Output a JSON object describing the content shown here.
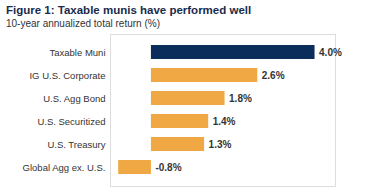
{
  "chart_data": {
    "type": "bar",
    "orientation": "horizontal",
    "title": "Figure 1: Taxable munis have performed well",
    "subtitle": "10-year annualized total return (%)",
    "categories": [
      "Taxable Muni",
      "IG U.S. Corporate",
      "U.S. Agg Bond",
      "U.S. Securitized",
      "U.S. Treasury",
      "Global Agg ex. U.S."
    ],
    "values": [
      4.0,
      2.6,
      1.8,
      1.4,
      1.3,
      -0.8
    ],
    "value_labels": [
      "4.0%",
      "2.6%",
      "1.8%",
      "1.4%",
      "1.3%",
      "-0.8%"
    ],
    "colors": [
      "#0b2d5c",
      "#f0a844",
      "#f0a844",
      "#f0a844",
      "#f0a844",
      "#f0a844"
    ],
    "xlim": [
      -1,
      4.5
    ],
    "data_labels": true,
    "tick_labels": "y",
    "grid": false
  }
}
